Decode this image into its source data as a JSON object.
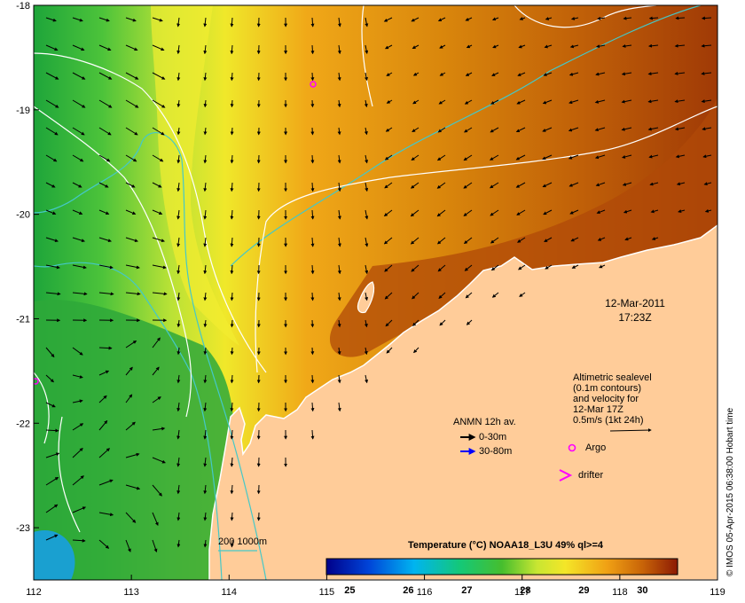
{
  "map": {
    "lon_range": [
      112,
      119
    ],
    "lat_range": [
      -23.5,
      -18
    ],
    "x_ticks": [
      "112",
      "113",
      "114",
      "115",
      "116",
      "117",
      "118",
      "119"
    ],
    "y_ticks": [
      "-18",
      "-19",
      "-20",
      "-21",
      "-22",
      "-23"
    ],
    "date": "12-Mar-2011",
    "time": "17:23Z",
    "colors": {
      "land": "#ffcc99",
      "coast": "#ffffff",
      "contour_white": "#ffffff",
      "isobath": "#44c8c8",
      "argo": "#ff00ff",
      "drifter": "#ff00ff",
      "vec_shallow": "#000000",
      "vec_deep": "#0000ff"
    }
  },
  "altimetry_note": {
    "line1": "Altimetric sealevel",
    "line2": "(0.1m contours)",
    "line3": "and velocity for",
    "line4": "12-Mar 17Z",
    "line5": "0.5m/s (1kt 24h)"
  },
  "legend": {
    "anmn_title": "ANMN 12h av.",
    "depth_shallow": "0-30m",
    "depth_deep": "30-80m",
    "argo": "Argo",
    "drifter": "drifter",
    "isobaths": "200  1000m"
  },
  "colorbar": {
    "title": "Temperature (°C) NOAA18_L3U 49% ql>=4",
    "ticks": [
      "25",
      "26",
      "27",
      "28",
      "29",
      "30"
    ],
    "range": [
      24.6,
      30.6
    ]
  },
  "credit": "© IMOS 05-Apr-2015 06:38:00 Hobart time"
}
